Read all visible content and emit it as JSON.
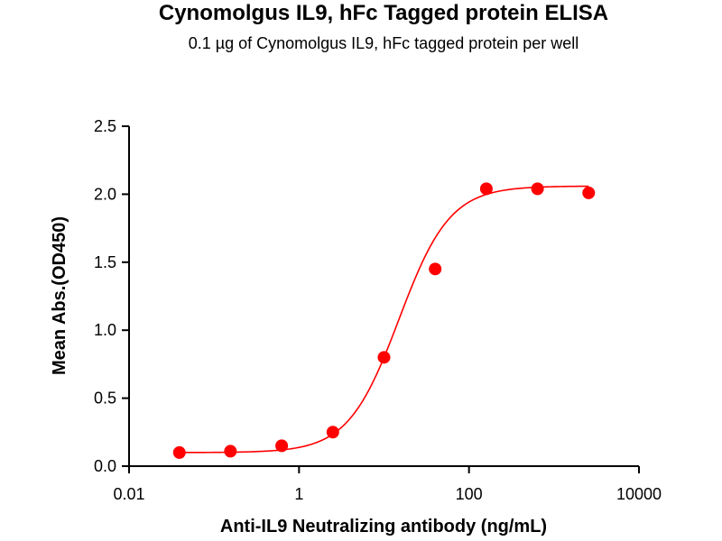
{
  "chart_data": {
    "type": "scatter",
    "title": "Cynomolgus IL9, hFc Tagged protein ELISA",
    "subtitle": "0.1 µg of Cynomolgus IL9, hFc tagged protein per well",
    "xlabel": "Anti-IL9 Neutralizing antibody (ng/mL)",
    "ylabel": "Mean Abs.(OD450)",
    "x_scale": "log",
    "xlim": [
      0.01,
      10000
    ],
    "ylim": [
      0,
      2.5
    ],
    "x_ticks": [
      {
        "value": 0.01,
        "label": "0.01"
      },
      {
        "value": 1,
        "label": "1"
      },
      {
        "value": 100,
        "label": "100"
      },
      {
        "value": 10000,
        "label": "10000"
      }
    ],
    "y_ticks": [
      {
        "value": 0,
        "label": "0.0"
      },
      {
        "value": 0.5,
        "label": "0.5"
      },
      {
        "value": 1.0,
        "label": "1.0"
      },
      {
        "value": 1.5,
        "label": "1.5"
      },
      {
        "value": 2.0,
        "label": "2.0"
      },
      {
        "value": 2.5,
        "label": "2.5"
      }
    ],
    "grid": false,
    "series": [
      {
        "x": [
          0.0391,
          0.156,
          0.625,
          2.5,
          10,
          40,
          160,
          640,
          2560
        ],
        "y": [
          0.1,
          0.11,
          0.15,
          0.25,
          0.8,
          1.45,
          2.04,
          2.04,
          2.01
        ],
        "color": "#ff0000",
        "fit": {
          "model": "4PL",
          "bottom": 0.1,
          "top": 2.06,
          "ec50": 15,
          "hill": 1.45
        }
      }
    ]
  }
}
